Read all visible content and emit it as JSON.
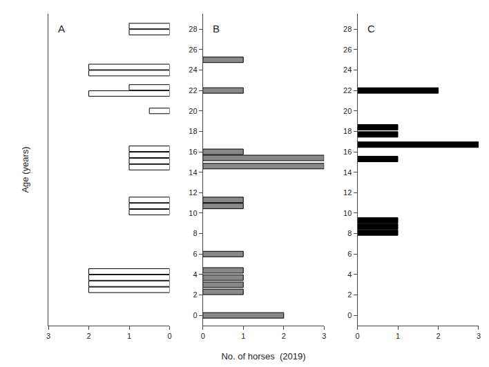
{
  "chart_data": [
    {
      "type": "bar",
      "orientation": "horizontal",
      "title": "A",
      "ylabel": "Age (years)",
      "y": [
        28.3,
        27.7,
        24.3,
        23.7,
        22.3,
        21.7,
        20.0,
        16.3,
        15.7,
        15.1,
        14.5,
        11.3,
        10.7,
        10.1,
        4.3,
        3.7,
        3.1,
        2.5
      ],
      "values": [
        1.0,
        1.0,
        2.0,
        2.0,
        1.0,
        2.0,
        0.5,
        1.0,
        1.0,
        1.0,
        1.0,
        1.0,
        1.0,
        1.0,
        2.0,
        2.0,
        2.0,
        2.0
      ],
      "color": "white",
      "xlim": [
        3,
        0
      ],
      "xticks": [
        3,
        2,
        1,
        0
      ],
      "ylim": [
        -1,
        29.5
      ],
      "tick_labels": "x",
      "grid": false
    },
    {
      "type": "bar",
      "orientation": "horizontal",
      "title": "B",
      "xlabel": "No. of horses  (2019)",
      "y": [
        25,
        22,
        16,
        15.4,
        14.6,
        11.3,
        10.7,
        6,
        4.4,
        3.7,
        3.0,
        2.3,
        0
      ],
      "values": [
        1.0,
        1.0,
        1.0,
        3.0,
        3.0,
        1.0,
        1.0,
        1.0,
        1.0,
        1.0,
        1.0,
        1.0,
        2.0
      ],
      "color": "#888888",
      "xlim": [
        0,
        3
      ],
      "xticks": [
        0,
        1,
        2,
        3
      ],
      "ylim": [
        -1,
        29.5
      ],
      "yticks": [
        0,
        2,
        4,
        6,
        8,
        10,
        12,
        14,
        16,
        18,
        20,
        22,
        24,
        26,
        28
      ],
      "grid": false
    },
    {
      "type": "bar",
      "orientation": "horizontal",
      "title": "C",
      "y": [
        22,
        18.4,
        17.7,
        16.7,
        15.3,
        9.3,
        8.7,
        8.1
      ],
      "values": [
        2.0,
        1.0,
        1.0,
        3.0,
        1.0,
        1.0,
        1.0,
        1.0
      ],
      "color": "black",
      "xlim": [
        0,
        3
      ],
      "xticks": [
        0,
        1,
        2,
        3
      ],
      "ylim": [
        -1,
        29.5
      ],
      "yticks": [
        0,
        2,
        4,
        6,
        8,
        10,
        12,
        14,
        16,
        18,
        20,
        22,
        24,
        26,
        28
      ],
      "grid": false
    }
  ]
}
